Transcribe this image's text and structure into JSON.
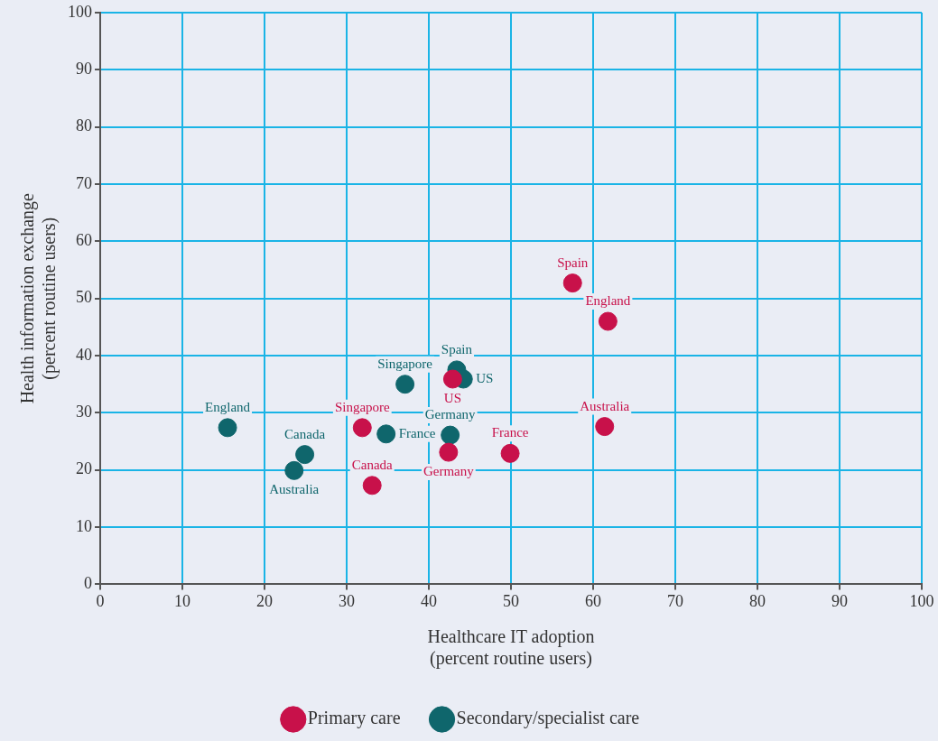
{
  "chart_data": {
    "type": "scatter",
    "xlabel": "Healthcare IT adoption\n(percent routine users)",
    "ylabel": "Health information exchange\n(percent routine users)",
    "xlim": [
      0,
      100
    ],
    "ylim": [
      0,
      100
    ],
    "xticks": [
      0,
      10,
      20,
      30,
      40,
      50,
      60,
      70,
      80,
      90,
      100
    ],
    "yticks": [
      0,
      10,
      20,
      30,
      40,
      50,
      60,
      70,
      80,
      90,
      100
    ],
    "grid": true,
    "legend": "bottom",
    "marker": "circle",
    "series": [
      {
        "name": "Primary care",
        "color": "#c8114a",
        "x": [
          57.5,
          61.8,
          42.9,
          31.9,
          61.4,
          49.9,
          42.4,
          33.1
        ],
        "values": [
          52.7,
          46.0,
          35.9,
          27.4,
          27.6,
          22.9,
          23.1,
          17.3
        ],
        "value_labels": [
          "Spain",
          "England",
          "US",
          "Singapore",
          "Australia",
          "France",
          "Germany",
          "Canada"
        ]
      },
      {
        "name": "Secondary/specialist care",
        "color": "#0f666c",
        "x": [
          43.4,
          44.2,
          37.1,
          15.5,
          34.8,
          42.6,
          24.9,
          23.6
        ],
        "values": [
          37.5,
          35.9,
          35.0,
          27.4,
          26.3,
          26.1,
          22.7,
          19.9
        ],
        "value_labels": [
          "Spain",
          "US",
          "Singapore",
          "England",
          "France",
          "Germany",
          "Canada",
          "Australia"
        ]
      }
    ]
  }
}
